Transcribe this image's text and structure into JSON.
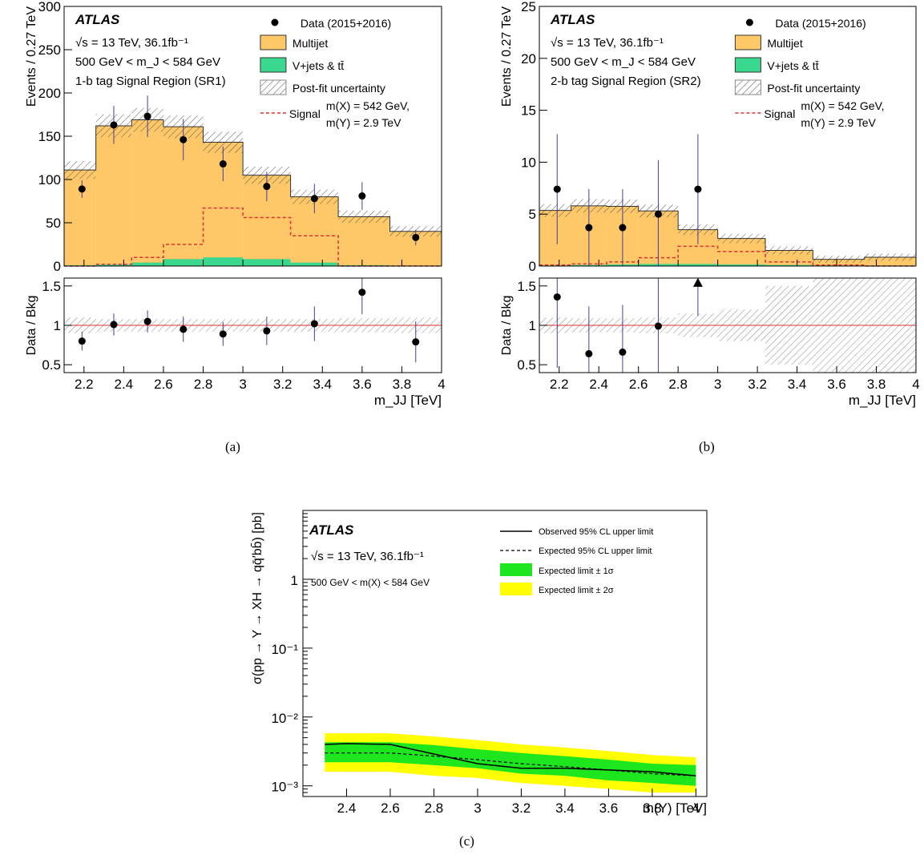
{
  "captions": [
    "(a)",
    "(b)",
    "(c)"
  ],
  "colors": {
    "multijet": "#fec767",
    "vjets": "#3ad88e",
    "signal": "#e03030",
    "band1": "#1ee61e",
    "band2": "#ffff00",
    "ratio_line": "#e03030",
    "errbar": "#40409a"
  },
  "chart_data": [
    {
      "type": "bar",
      "panel": "a",
      "title": "",
      "experiment": "ATLAS",
      "text_lines": [
        "√s = 13 TeV, 36.1fb⁻¹",
        "500 GeV < m_J < 584 GeV",
        "1-b tag Signal Region (SR1)"
      ],
      "xlabel": "m_JJ [TeV]",
      "ylabel": "Events / 0.27 TeV",
      "xlim": [
        2.1,
        4.0
      ],
      "ylim": [
        0,
        300
      ],
      "yticks": [
        0,
        50,
        100,
        150,
        200,
        250,
        300
      ],
      "xticks": [
        2.2,
        2.4,
        2.6,
        2.8,
        3,
        3.2,
        3.4,
        3.6,
        3.8,
        4
      ],
      "bin_edges": [
        2.1,
        2.26,
        2.44,
        2.6,
        2.8,
        3.0,
        3.24,
        3.48,
        3.74,
        4.0
      ],
      "series": [
        {
          "name": "Multijet",
          "values": [
            110,
            160,
            165,
            153,
            133,
            97,
            76,
            56,
            40
          ]
        },
        {
          "name": "V+jets & tt̄",
          "values": [
            1,
            2,
            4,
            8,
            10,
            8,
            4,
            1,
            0
          ]
        },
        {
          "name": "Signal",
          "values": [
            0,
            2,
            10,
            25,
            67,
            56,
            35,
            0,
            0
          ]
        }
      ],
      "data": {
        "name": "Data (2015+2016)",
        "x": [
          2.19,
          2.35,
          2.52,
          2.7,
          2.9,
          3.12,
          3.36,
          3.6,
          3.87
        ],
        "y": [
          89,
          163,
          173,
          146,
          118,
          92,
          78,
          81,
          33
        ],
        "err": [
          10,
          22,
          24,
          24,
          20,
          17,
          17,
          16,
          9
        ]
      },
      "uncertainty_label": "Post-fit uncertainty",
      "signal_label": [
        "m(X) = 542 GeV,",
        "m(Y) = 2.9 TeV"
      ],
      "ratio": {
        "ylabel": "Data / Bkg",
        "ylim": [
          0.4,
          1.6
        ],
        "yticks": [
          0.5,
          1,
          1.5
        ],
        "y": [
          0.8,
          1.01,
          1.05,
          0.95,
          0.89,
          0.93,
          1.02,
          1.42,
          0.79
        ],
        "err": [
          0.12,
          0.14,
          0.14,
          0.16,
          0.15,
          0.18,
          0.22,
          0.28,
          0.26
        ],
        "band": [
          0.1,
          0.08,
          0.08,
          0.08,
          0.08,
          0.08,
          0.08,
          0.09,
          0.1
        ]
      }
    },
    {
      "type": "bar",
      "panel": "b",
      "title": "",
      "experiment": "ATLAS",
      "text_lines": [
        "√s = 13 TeV, 36.1fb⁻¹",
        "500 GeV < m_J < 584 GeV",
        "2-b tag Signal Region (SR2)"
      ],
      "xlabel": "m_JJ [TeV]",
      "ylabel": "Events / 0.27 TeV",
      "xlim": [
        2.1,
        4.0
      ],
      "ylim": [
        0,
        25
      ],
      "yticks": [
        0,
        5,
        10,
        15,
        20,
        25
      ],
      "xticks": [
        2.2,
        2.4,
        2.6,
        2.8,
        3,
        3.2,
        3.4,
        3.6,
        3.8,
        4
      ],
      "bin_edges": [
        2.1,
        2.26,
        2.44,
        2.6,
        2.8,
        3.0,
        3.24,
        3.48,
        3.74,
        4.0
      ],
      "series": [
        {
          "name": "Multijet",
          "values": [
            5.3,
            5.7,
            5.6,
            5.1,
            3.3,
            2.5,
            1.4,
            0.6,
            0.8
          ]
        },
        {
          "name": "V+jets & tt̄",
          "values": [
            0.05,
            0.1,
            0.15,
            0.2,
            0.2,
            0.15,
            0.1,
            0.05,
            0.05
          ]
        },
        {
          "name": "Signal",
          "values": [
            0.1,
            0.2,
            0.4,
            0.8,
            1.9,
            1.4,
            0.4,
            0.1,
            0.0
          ]
        }
      ],
      "data": {
        "name": "Data (2015+2016)",
        "x": [
          2.19,
          2.35,
          2.52,
          2.7,
          2.9
        ],
        "y": [
          7.4,
          3.7,
          3.7,
          5.0,
          7.4
        ],
        "err": [
          5.3,
          3.7,
          3.7,
          5.2,
          5.3
        ]
      },
      "uncertainty_label": "Post-fit uncertainty",
      "signal_label": [
        "m(X) = 542 GeV,",
        "m(Y) = 2.9 TeV"
      ],
      "ratio": {
        "ylabel": "Data / Bkg",
        "ylim": [
          0.4,
          1.6
        ],
        "yticks": [
          0.5,
          1,
          1.5
        ],
        "y": [
          1.36,
          0.64,
          0.66,
          0.99,
          1.52
        ],
        "err": [
          0.9,
          0.6,
          0.6,
          0.9,
          0.4
        ],
        "band": [
          0.1,
          0.09,
          0.09,
          0.1,
          0.15,
          0.2,
          0.5,
          0.6,
          0.6
        ]
      }
    },
    {
      "type": "line",
      "panel": "c",
      "title": "",
      "experiment": "ATLAS",
      "text_lines": [
        "√s = 13 TeV, 36.1fb⁻¹",
        "500 GeV < m(X) < 584 GeV"
      ],
      "xlabel": "m(Y) [TeV]",
      "ylabel": "σ(pp → Y → XH → qq̄′bb̄) [pb]",
      "xlim": [
        2.2,
        4.05
      ],
      "ylim": [
        0.0007,
        10
      ],
      "yscale": "log",
      "yticks": [
        "10⁻³",
        "10⁻²",
        "10⁻¹",
        "1"
      ],
      "xticks": [
        2.4,
        2.6,
        2.8,
        3,
        3.2,
        3.4,
        3.6,
        3.8,
        4
      ],
      "x": [
        2.3,
        2.4,
        2.6,
        2.8,
        3.0,
        3.2,
        3.4,
        3.6,
        3.8,
        4.0
      ],
      "series": [
        {
          "name": "Observed 95% CL upper limit",
          "values": [
            0.004,
            0.0041,
            0.004,
            0.0029,
            0.0021,
            0.0018,
            0.0018,
            0.0017,
            0.0016,
            0.0014
          ]
        },
        {
          "name": "Expected 95% CL upper limit",
          "values": [
            0.003,
            0.003,
            0.003,
            0.0027,
            0.0024,
            0.0021,
            0.0019,
            0.0017,
            0.0015,
            0.0014
          ]
        }
      ],
      "bands": [
        {
          "name": "Expected limit ± 2σ",
          "low": [
            0.0016,
            0.0016,
            0.0016,
            0.0014,
            0.0013,
            0.0011,
            0.001,
            0.0009,
            0.0008,
            0.0008
          ],
          "high": [
            0.0058,
            0.0058,
            0.0058,
            0.0052,
            0.0046,
            0.004,
            0.0036,
            0.0032,
            0.0028,
            0.0026
          ]
        },
        {
          "name": "Expected limit ± 1σ",
          "low": [
            0.0022,
            0.0022,
            0.0022,
            0.002,
            0.0018,
            0.0015,
            0.0014,
            0.0012,
            0.0011,
            0.001
          ],
          "high": [
            0.0043,
            0.0043,
            0.0043,
            0.0039,
            0.0034,
            0.003,
            0.0027,
            0.0024,
            0.0021,
            0.002
          ]
        }
      ]
    }
  ]
}
